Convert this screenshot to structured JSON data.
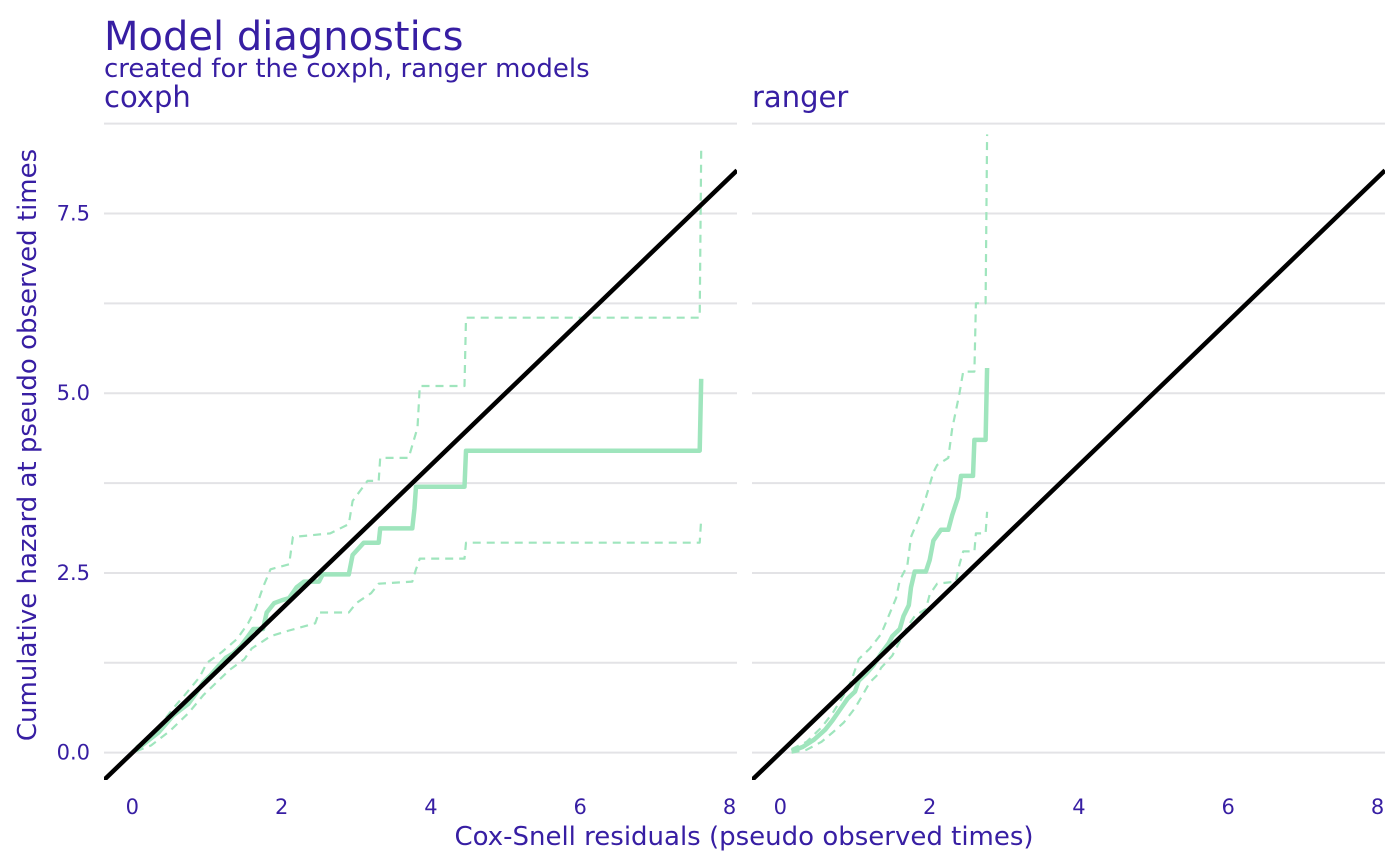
{
  "colors": {
    "text": "#371ea3",
    "grid": "#e3e3e6",
    "curve": "#9fe5bd",
    "reference_line": "#000000"
  },
  "chart_data": {
    "type": "line",
    "title": "Model diagnostics",
    "subtitle": "created for the coxph, ranger models",
    "xlabel": "Cox-Snell residuals (pseudo observed times)",
    "ylabel": "Cumulative hazard at pseudo observed times",
    "xlim": [
      -0.38,
      8.1
    ],
    "ylim": [
      -0.38,
      8.8
    ],
    "x_ticks": [
      0,
      2,
      4,
      6,
      8
    ],
    "x_tick_labels": [
      "0",
      "2",
      "4",
      "6",
      "8"
    ],
    "y_ticks": [
      0,
      2.5,
      5,
      7.5
    ],
    "y_tick_labels": [
      "0.0",
      "2.5",
      "5.0",
      "7.5"
    ],
    "grid": "horizontal",
    "panels": [
      {
        "name": "coxph",
        "series": [
          {
            "role": "estimate",
            "style": "solid",
            "points": [
              [
                0.05,
                0.05
              ],
              [
                0.15,
                0.12
              ],
              [
                0.25,
                0.2
              ],
              [
                0.35,
                0.28
              ],
              [
                0.45,
                0.4
              ],
              [
                0.55,
                0.52
              ],
              [
                0.65,
                0.6
              ],
              [
                0.75,
                0.68
              ],
              [
                0.85,
                0.82
              ],
              [
                0.95,
                0.98
              ],
              [
                1.05,
                1.08
              ],
              [
                1.15,
                1.2
              ],
              [
                1.25,
                1.32
              ],
              [
                1.35,
                1.38
              ],
              [
                1.45,
                1.48
              ],
              [
                1.55,
                1.62
              ],
              [
                1.62,
                1.72
              ],
              [
                1.75,
                1.72
              ],
              [
                1.8,
                1.95
              ],
              [
                1.9,
                2.08
              ],
              [
                2.0,
                2.12
              ],
              [
                2.1,
                2.15
              ],
              [
                2.2,
                2.3
              ],
              [
                2.3,
                2.38
              ],
              [
                2.5,
                2.38
              ],
              [
                2.55,
                2.48
              ],
              [
                2.9,
                2.48
              ],
              [
                2.95,
                2.75
              ],
              [
                3.1,
                2.92
              ],
              [
                3.3,
                2.92
              ],
              [
                3.32,
                3.12
              ],
              [
                3.75,
                3.12
              ],
              [
                3.78,
                3.4
              ],
              [
                3.8,
                3.7
              ],
              [
                4.45,
                3.7
              ],
              [
                4.47,
                4.2
              ],
              [
                7.6,
                4.2
              ],
              [
                7.62,
                5.2
              ]
            ]
          },
          {
            "role": "upper-bound",
            "style": "dashed",
            "points": [
              [
                0.05,
                0.08
              ],
              [
                0.2,
                0.2
              ],
              [
                0.4,
                0.42
              ],
              [
                0.55,
                0.62
              ],
              [
                0.7,
                0.8
              ],
              [
                0.9,
                1.05
              ],
              [
                1.0,
                1.25
              ],
              [
                1.2,
                1.4
              ],
              [
                1.4,
                1.58
              ],
              [
                1.55,
                1.8
              ],
              [
                1.65,
                2.0
              ],
              [
                1.75,
                2.3
              ],
              [
                1.85,
                2.55
              ],
              [
                2.1,
                2.62
              ],
              [
                2.15,
                3.0
              ],
              [
                2.65,
                3.05
              ],
              [
                2.9,
                3.18
              ],
              [
                2.95,
                3.5
              ],
              [
                3.15,
                3.78
              ],
              [
                3.3,
                3.78
              ],
              [
                3.32,
                4.1
              ],
              [
                3.7,
                4.1
              ],
              [
                3.82,
                4.52
              ],
              [
                3.85,
                5.1
              ],
              [
                4.45,
                5.1
              ],
              [
                4.47,
                6.05
              ],
              [
                7.6,
                6.05
              ],
              [
                7.62,
                8.4
              ]
            ]
          },
          {
            "role": "lower-bound",
            "style": "dashed",
            "points": [
              [
                0.05,
                0.02
              ],
              [
                0.25,
                0.1
              ],
              [
                0.5,
                0.3
              ],
              [
                0.75,
                0.55
              ],
              [
                0.95,
                0.8
              ],
              [
                1.15,
                1.0
              ],
              [
                1.3,
                1.15
              ],
              [
                1.5,
                1.3
              ],
              [
                1.6,
                1.45
              ],
              [
                1.75,
                1.55
              ],
              [
                1.85,
                1.62
              ],
              [
                2.1,
                1.7
              ],
              [
                2.45,
                1.8
              ],
              [
                2.5,
                1.95
              ],
              [
                2.9,
                1.95
              ],
              [
                3.0,
                2.08
              ],
              [
                3.2,
                2.22
              ],
              [
                3.3,
                2.35
              ],
              [
                3.75,
                2.38
              ],
              [
                3.8,
                2.55
              ],
              [
                3.85,
                2.7
              ],
              [
                4.45,
                2.7
              ],
              [
                4.47,
                2.92
              ],
              [
                7.6,
                2.92
              ],
              [
                7.62,
                3.25
              ]
            ]
          }
        ]
      },
      {
        "name": "ranger",
        "series": [
          {
            "role": "estimate",
            "style": "solid",
            "points": [
              [
                0.15,
                0.02
              ],
              [
                0.3,
                0.08
              ],
              [
                0.45,
                0.18
              ],
              [
                0.6,
                0.32
              ],
              [
                0.7,
                0.45
              ],
              [
                0.8,
                0.6
              ],
              [
                0.9,
                0.75
              ],
              [
                1.0,
                0.85
              ],
              [
                1.05,
                1.0
              ],
              [
                1.15,
                1.1
              ],
              [
                1.25,
                1.22
              ],
              [
                1.35,
                1.38
              ],
              [
                1.45,
                1.52
              ],
              [
                1.5,
                1.62
              ],
              [
                1.6,
                1.72
              ],
              [
                1.65,
                1.9
              ],
              [
                1.72,
                2.05
              ],
              [
                1.75,
                2.3
              ],
              [
                1.8,
                2.52
              ],
              [
                1.95,
                2.52
              ],
              [
                2.0,
                2.68
              ],
              [
                2.05,
                2.95
              ],
              [
                2.15,
                3.1
              ],
              [
                2.25,
                3.1
              ],
              [
                2.3,
                3.3
              ],
              [
                2.38,
                3.55
              ],
              [
                2.42,
                3.85
              ],
              [
                2.58,
                3.85
              ],
              [
                2.6,
                4.35
              ],
              [
                2.75,
                4.35
              ],
              [
                2.77,
                5.35
              ]
            ]
          },
          {
            "role": "upper-bound",
            "style": "dashed",
            "points": [
              [
                0.15,
                0.05
              ],
              [
                0.35,
                0.15
              ],
              [
                0.55,
                0.35
              ],
              [
                0.7,
                0.55
              ],
              [
                0.85,
                0.8
              ],
              [
                0.95,
                1.0
              ],
              [
                1.05,
                1.3
              ],
              [
                1.2,
                1.45
              ],
              [
                1.35,
                1.65
              ],
              [
                1.45,
                1.9
              ],
              [
                1.55,
                2.15
              ],
              [
                1.6,
                2.4
              ],
              [
                1.7,
                2.6
              ],
              [
                1.75,
                3.0
              ],
              [
                1.85,
                3.25
              ],
              [
                1.95,
                3.55
              ],
              [
                2.05,
                3.9
              ],
              [
                2.1,
                4.0
              ],
              [
                2.25,
                4.1
              ],
              [
                2.3,
                4.5
              ],
              [
                2.4,
                5.0
              ],
              [
                2.45,
                5.3
              ],
              [
                2.6,
                5.3
              ],
              [
                2.62,
                6.25
              ],
              [
                2.75,
                6.25
              ],
              [
                2.77,
                8.6
              ]
            ]
          },
          {
            "role": "lower-bound",
            "style": "dashed",
            "points": [
              [
                0.15,
                0.0
              ],
              [
                0.35,
                0.04
              ],
              [
                0.55,
                0.15
              ],
              [
                0.7,
                0.28
              ],
              [
                0.85,
                0.42
              ],
              [
                1.0,
                0.62
              ],
              [
                1.1,
                0.8
              ],
              [
                1.2,
                0.98
              ],
              [
                1.3,
                1.08
              ],
              [
                1.35,
                1.18
              ],
              [
                1.5,
                1.35
              ],
              [
                1.6,
                1.55
              ],
              [
                1.7,
                1.75
              ],
              [
                1.8,
                1.9
              ],
              [
                1.95,
                2.0
              ],
              [
                2.0,
                2.2
              ],
              [
                2.1,
                2.35
              ],
              [
                2.35,
                2.38
              ],
              [
                2.4,
                2.62
              ],
              [
                2.45,
                2.8
              ],
              [
                2.6,
                2.8
              ],
              [
                2.62,
                3.05
              ],
              [
                2.75,
                3.05
              ],
              [
                2.77,
                3.35
              ]
            ]
          }
        ]
      }
    ],
    "reference_line": {
      "slope": 1,
      "intercept": 0
    }
  }
}
